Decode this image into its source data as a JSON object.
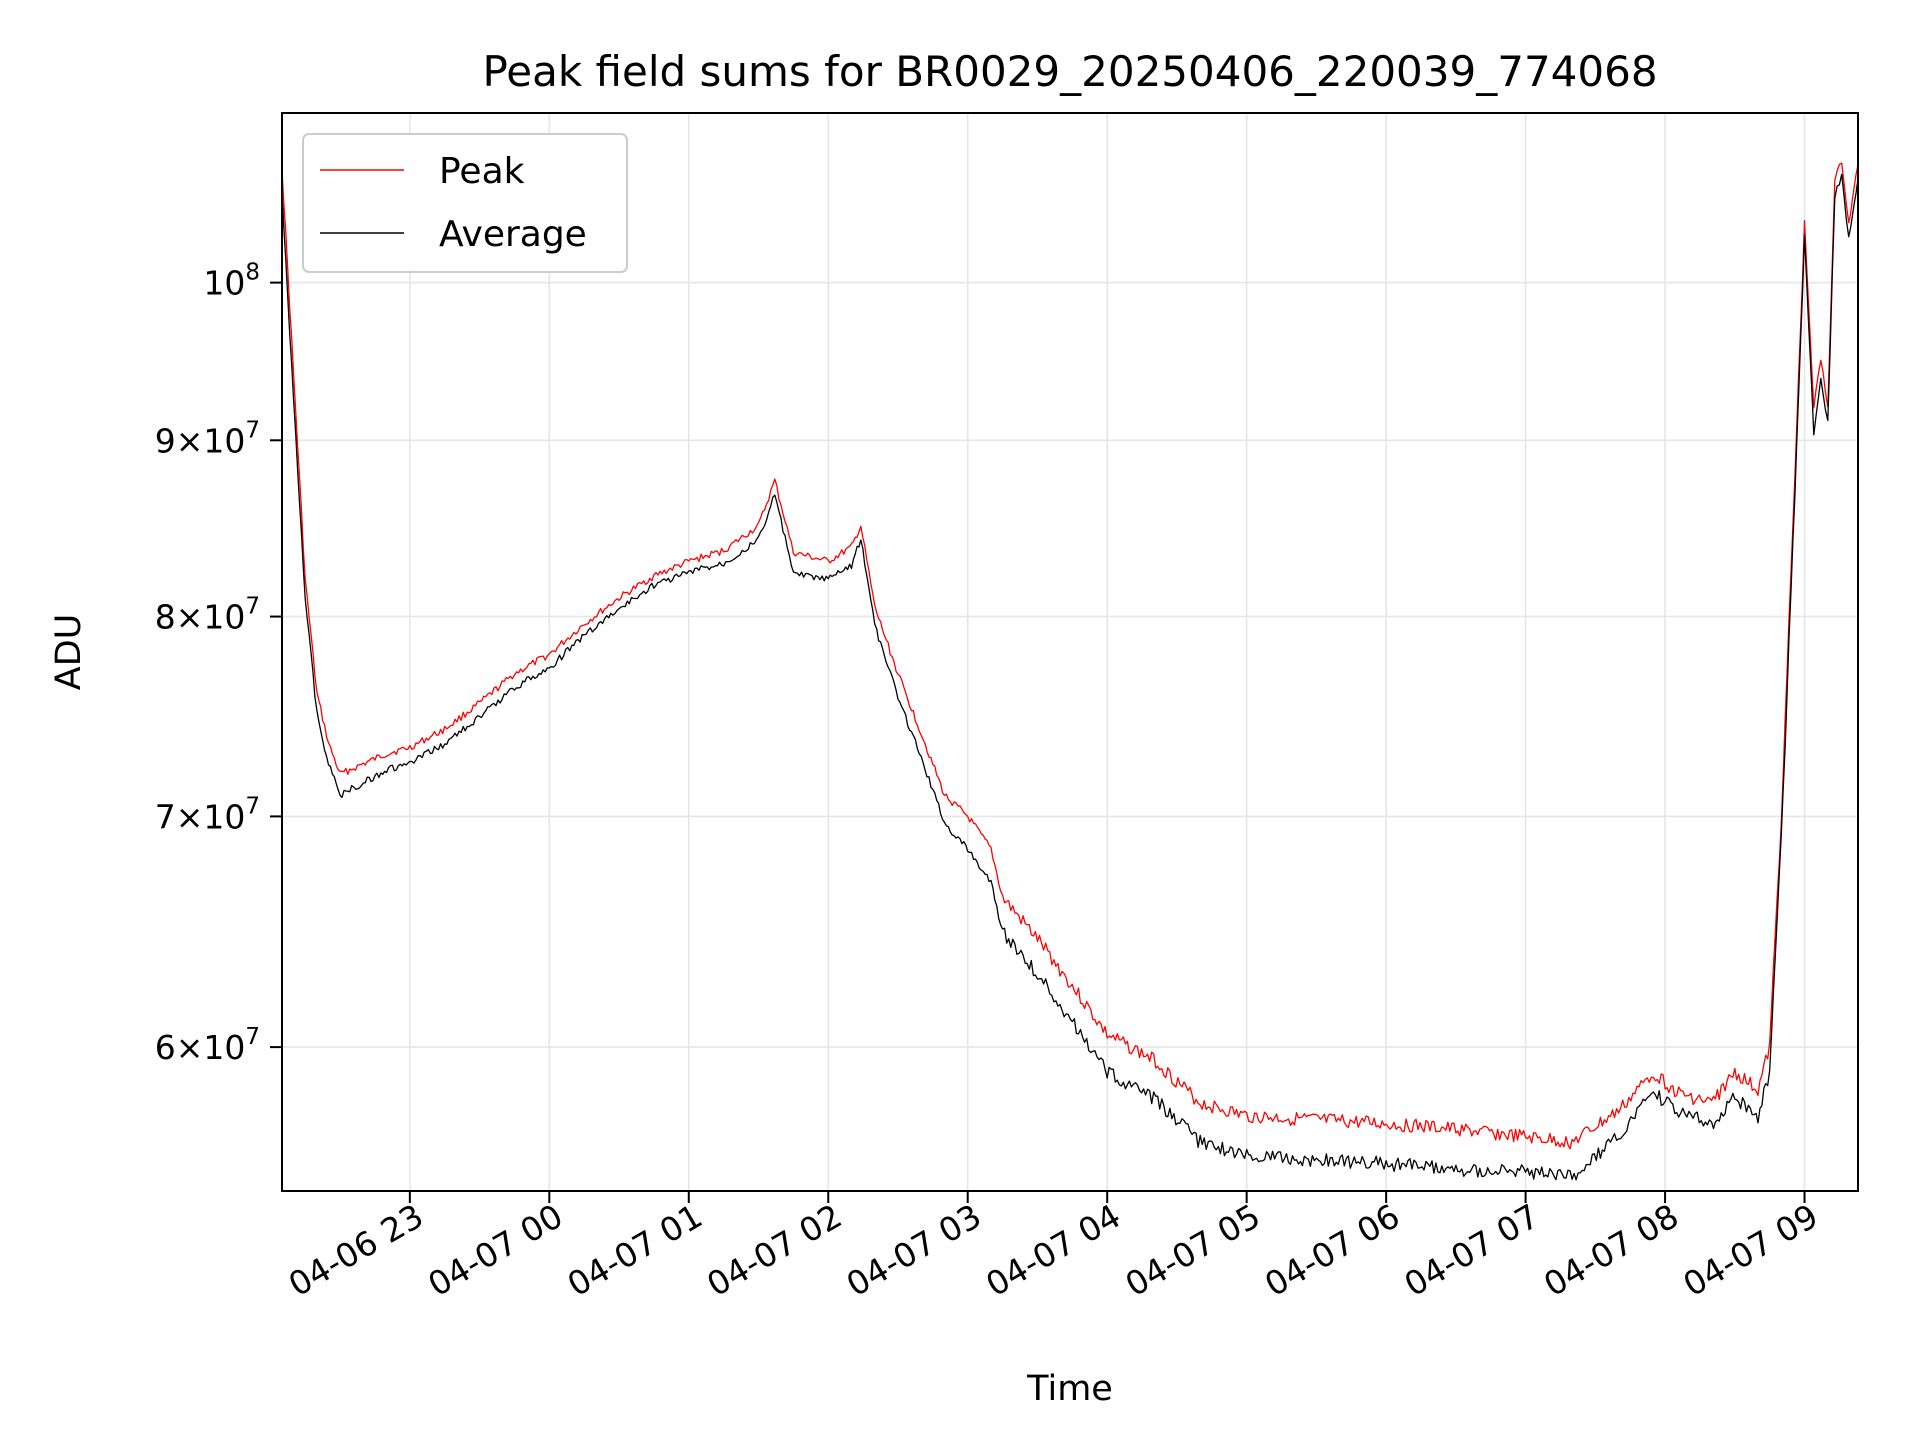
{
  "chart_data": {
    "type": "line",
    "title": "Peak field sums for BR0029_20250406_220039_774068",
    "xlabel": "Time",
    "ylabel": "ADU",
    "y_scale": "log",
    "x_range": [
      "2025-04-06 22:05",
      "2025-04-07 09:23"
    ],
    "ylim": [
      54500000,
      112000000
    ],
    "grid": true,
    "legend_position": "upper-left",
    "x_ticks": [
      {
        "t": "2025-04-06 23:00",
        "label": "04-06 23"
      },
      {
        "t": "2025-04-07 00:00",
        "label": "04-07 00"
      },
      {
        "t": "2025-04-07 01:00",
        "label": "04-07 01"
      },
      {
        "t": "2025-04-07 02:00",
        "label": "04-07 02"
      },
      {
        "t": "2025-04-07 03:00",
        "label": "04-07 03"
      },
      {
        "t": "2025-04-07 04:00",
        "label": "04-07 04"
      },
      {
        "t": "2025-04-07 05:00",
        "label": "04-07 05"
      },
      {
        "t": "2025-04-07 06:00",
        "label": "04-07 06"
      },
      {
        "t": "2025-04-07 07:00",
        "label": "04-07 07"
      },
      {
        "t": "2025-04-07 08:00",
        "label": "04-07 08"
      },
      {
        "t": "2025-04-07 09:00",
        "label": "04-07 09"
      }
    ],
    "y_ticks": [
      {
        "value": 60000000,
        "mantissa": "6",
        "exp": "7"
      },
      {
        "value": 70000000,
        "mantissa": "7",
        "exp": "7"
      },
      {
        "value": 80000000,
        "mantissa": "8",
        "exp": "7"
      },
      {
        "value": 90000000,
        "mantissa": "9",
        "exp": "7"
      },
      {
        "value": 100000000,
        "mantissa": "",
        "exp": "8"
      }
    ],
    "series": [
      {
        "name": "Peak",
        "color": "#ff0000",
        "points": [
          [
            "2025-04-06 22:05",
            108000000
          ],
          [
            "2025-04-06 22:10",
            94000000
          ],
          [
            "2025-04-06 22:15",
            82000000
          ],
          [
            "2025-04-06 22:20",
            76000000
          ],
          [
            "2025-04-06 22:25",
            73500000
          ],
          [
            "2025-04-06 22:30",
            72000000
          ],
          [
            "2025-04-06 22:40",
            72500000
          ],
          [
            "2025-04-06 22:50",
            73000000
          ],
          [
            "2025-04-06 23:00",
            73300000
          ],
          [
            "2025-04-06 23:15",
            74200000
          ],
          [
            "2025-04-06 23:30",
            75500000
          ],
          [
            "2025-04-06 23:45",
            77000000
          ],
          [
            "2025-04-07 00:00",
            78000000
          ],
          [
            "2025-04-07 00:15",
            79600000
          ],
          [
            "2025-04-07 00:30",
            81000000
          ],
          [
            "2025-04-07 00:45",
            82200000
          ],
          [
            "2025-04-07 01:00",
            83000000
          ],
          [
            "2025-04-07 01:15",
            83600000
          ],
          [
            "2025-04-07 01:30",
            85000000
          ],
          [
            "2025-04-07 01:37",
            87600000
          ],
          [
            "2025-04-07 01:45",
            83500000
          ],
          [
            "2025-04-07 02:00",
            83000000
          ],
          [
            "2025-04-07 02:10",
            83800000
          ],
          [
            "2025-04-07 02:14",
            85000000
          ],
          [
            "2025-04-07 02:20",
            80500000
          ],
          [
            "2025-04-07 02:30",
            77000000
          ],
          [
            "2025-04-07 02:40",
            74000000
          ],
          [
            "2025-04-07 02:50",
            71000000
          ],
          [
            "2025-04-07 03:00",
            70000000
          ],
          [
            "2025-04-07 03:10",
            68500000
          ],
          [
            "2025-04-07 03:15",
            66300000
          ],
          [
            "2025-04-07 03:30",
            64500000
          ],
          [
            "2025-04-07 03:45",
            62500000
          ],
          [
            "2025-04-07 04:00",
            60500000
          ],
          [
            "2025-04-07 04:20",
            59500000
          ],
          [
            "2025-04-07 04:40",
            57800000
          ],
          [
            "2025-04-07 05:00",
            57300000
          ],
          [
            "2025-04-07 06:00",
            57000000
          ],
          [
            "2025-04-07 06:30",
            56800000
          ],
          [
            "2025-04-07 07:00",
            56500000
          ],
          [
            "2025-04-07 07:20",
            56300000
          ],
          [
            "2025-04-07 07:40",
            57500000
          ],
          [
            "2025-04-07 07:55",
            59000000
          ],
          [
            "2025-04-07 08:05",
            58200000
          ],
          [
            "2025-04-07 08:20",
            57800000
          ],
          [
            "2025-04-07 08:30",
            59000000
          ],
          [
            "2025-04-07 08:40",
            58300000
          ],
          [
            "2025-04-07 08:45",
            60000000
          ],
          [
            "2025-04-07 08:50",
            70000000
          ],
          [
            "2025-04-07 08:55",
            85000000
          ],
          [
            "2025-04-07 09:00",
            104000000
          ],
          [
            "2025-04-07 09:04",
            92000000
          ],
          [
            "2025-04-07 09:07",
            95000000
          ],
          [
            "2025-04-07 09:10",
            92000000
          ],
          [
            "2025-04-07 09:13",
            107000000
          ],
          [
            "2025-04-07 09:16",
            108500000
          ],
          [
            "2025-04-07 09:19",
            104000000
          ],
          [
            "2025-04-07 09:23",
            108200000
          ]
        ]
      },
      {
        "name": "Average",
        "color": "#000000",
        "points": [
          [
            "2025-04-06 22:05",
            106000000
          ],
          [
            "2025-04-06 22:10",
            92500000
          ],
          [
            "2025-04-06 22:15",
            81000000
          ],
          [
            "2025-04-06 22:20",
            75000000
          ],
          [
            "2025-04-06 22:25",
            72500000
          ],
          [
            "2025-04-06 22:30",
            71000000
          ],
          [
            "2025-04-06 22:40",
            71600000
          ],
          [
            "2025-04-06 22:50",
            72200000
          ],
          [
            "2025-04-06 23:00",
            72500000
          ],
          [
            "2025-04-06 23:15",
            73500000
          ],
          [
            "2025-04-06 23:30",
            74800000
          ],
          [
            "2025-04-06 23:45",
            76300000
          ],
          [
            "2025-04-07 00:00",
            77300000
          ],
          [
            "2025-04-07 00:15",
            79000000
          ],
          [
            "2025-04-07 00:30",
            80400000
          ],
          [
            "2025-04-07 00:45",
            81700000
          ],
          [
            "2025-04-07 01:00",
            82400000
          ],
          [
            "2025-04-07 01:15",
            82900000
          ],
          [
            "2025-04-07 01:30",
            84200000
          ],
          [
            "2025-04-07 01:37",
            86800000
          ],
          [
            "2025-04-07 01:45",
            82300000
          ],
          [
            "2025-04-07 02:00",
            82000000
          ],
          [
            "2025-04-07 02:10",
            82800000
          ],
          [
            "2025-04-07 02:14",
            84300000
          ],
          [
            "2025-04-07 02:20",
            79500000
          ],
          [
            "2025-04-07 02:30",
            75800000
          ],
          [
            "2025-04-07 02:40",
            72800000
          ],
          [
            "2025-04-07 02:50",
            69700000
          ],
          [
            "2025-04-07 03:00",
            68500000
          ],
          [
            "2025-04-07 03:10",
            67000000
          ],
          [
            "2025-04-07 03:15",
            64800000
          ],
          [
            "2025-04-07 03:30",
            63000000
          ],
          [
            "2025-04-07 03:45",
            61000000
          ],
          [
            "2025-04-07 04:00",
            59000000
          ],
          [
            "2025-04-07 04:20",
            58000000
          ],
          [
            "2025-04-07 04:40",
            56300000
          ],
          [
            "2025-04-07 05:00",
            55800000
          ],
          [
            "2025-04-07 06:00",
            55500000
          ],
          [
            "2025-04-07 06:30",
            55300000
          ],
          [
            "2025-04-07 07:00",
            55200000
          ],
          [
            "2025-04-07 07:20",
            55000000
          ],
          [
            "2025-04-07 07:40",
            56500000
          ],
          [
            "2025-04-07 07:55",
            58200000
          ],
          [
            "2025-04-07 08:05",
            57500000
          ],
          [
            "2025-04-07 08:20",
            57000000
          ],
          [
            "2025-04-07 08:30",
            58000000
          ],
          [
            "2025-04-07 08:40",
            57300000
          ],
          [
            "2025-04-07 08:45",
            59000000
          ],
          [
            "2025-04-07 08:50",
            69000000
          ],
          [
            "2025-04-07 08:55",
            84000000
          ],
          [
            "2025-04-07 09:00",
            103000000
          ],
          [
            "2025-04-07 09:04",
            90500000
          ],
          [
            "2025-04-07 09:07",
            93800000
          ],
          [
            "2025-04-07 09:10",
            91000000
          ],
          [
            "2025-04-07 09:13",
            106000000
          ],
          [
            "2025-04-07 09:16",
            107500000
          ],
          [
            "2025-04-07 09:19",
            103000000
          ],
          [
            "2025-04-07 09:23",
            107200000
          ]
        ]
      }
    ]
  }
}
